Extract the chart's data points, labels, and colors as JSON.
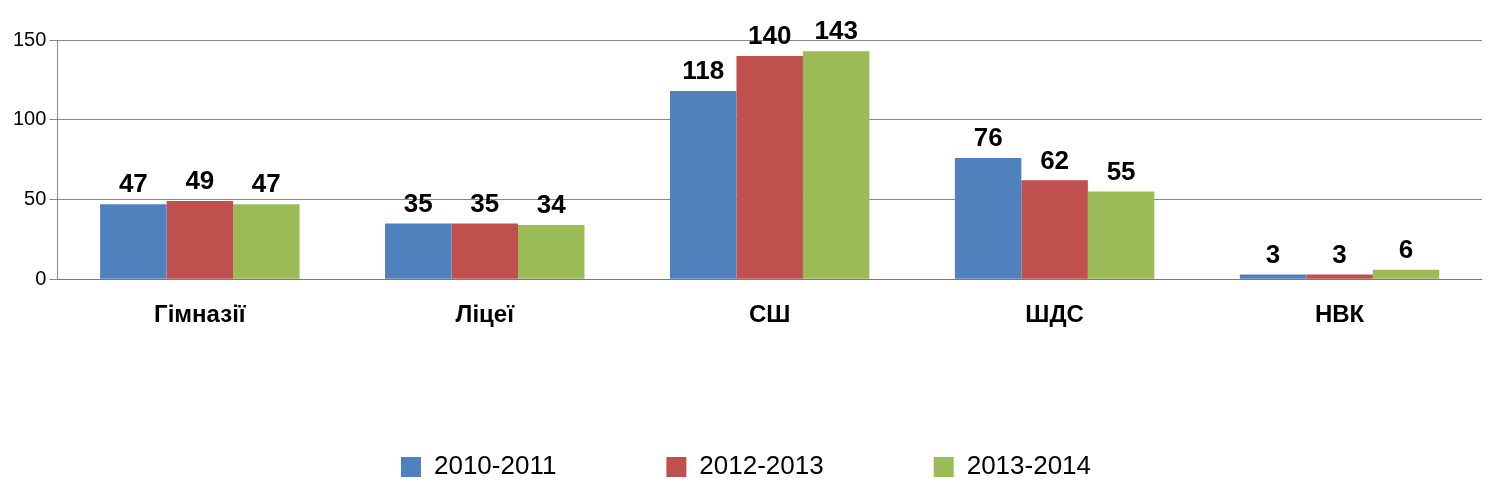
{
  "chart_data": {
    "type": "bar",
    "categories": [
      "Гімназії",
      "Ліцеї",
      "СШ",
      "ШДС",
      "НВК"
    ],
    "series": [
      {
        "name": "2010-2011",
        "color": "#4f81bd",
        "values": [
          47,
          35,
          118,
          76,
          3
        ]
      },
      {
        "name": "2012-2013",
        "color": "#c0504d",
        "values": [
          49,
          35,
          140,
          62,
          3
        ]
      },
      {
        "name": "2013-2014",
        "color": "#9bbb59",
        "values": [
          47,
          34,
          143,
          55,
          6
        ]
      }
    ],
    "ylim": [
      0,
      150
    ],
    "yticks": [
      0,
      50,
      100,
      150
    ],
    "grid": "y",
    "legend": "bottom",
    "data_labels": true
  }
}
